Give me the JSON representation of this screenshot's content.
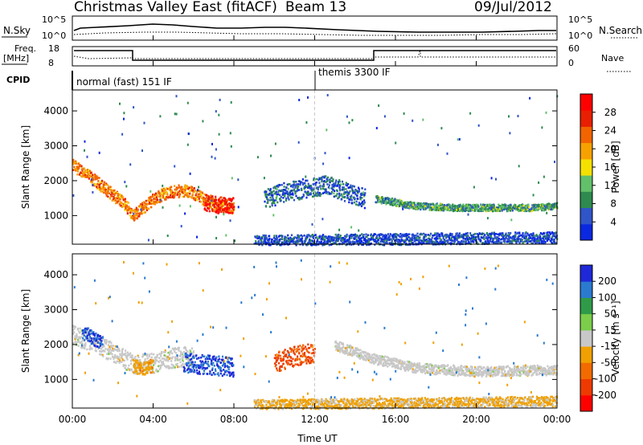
{
  "header": {
    "station": "Christmas Valley East (fitACF)",
    "beam": "Beam 13",
    "date": "09/Jul/2012"
  },
  "top_panels": {
    "nsky_label": "N.Sky",
    "nsky_ticks": [
      "10^5",
      "10^0"
    ],
    "nsearch_label": "N.Search",
    "nsearch_ticks": [
      "10^5",
      "10^0"
    ],
    "freq_label": "Freq.",
    "freq_unit": "[MHz]",
    "freq_ticks": [
      "18",
      "8"
    ],
    "nave_label": "Nave",
    "nave_ticks": [
      "60",
      "0"
    ],
    "cpid_label": "CPID",
    "cpid_segments": [
      {
        "label": "normal (fast) 151 IF",
        "start_hour": 0
      },
      {
        "label": "themis 3300 IF",
        "start_hour": 12
      }
    ]
  },
  "x_axis": {
    "label": "Time UT",
    "ticks": [
      "00:00",
      "04:00",
      "08:00",
      "12:00",
      "16:00",
      "20:00",
      "00:00"
    ]
  },
  "colors": {
    "power": [
      "#0a28e0",
      "#2f55c8",
      "#2e8a4f",
      "#63c06a",
      "#f5e000",
      "#f7a100",
      "#f26400",
      "#e81f00",
      "#ff0000"
    ],
    "velocity": [
      "#1e28d8",
      "#2a7ad0",
      "#2f9b48",
      "#7ccd4a",
      "#c8c8c8",
      "#f0a000",
      "#f26a00",
      "#ee3a00",
      "#ff0000"
    ]
  },
  "chart_data": [
    {
      "type": "heatmap",
      "title": "Power",
      "xlabel": "Time UT",
      "ylabel": "Slant Range [km]",
      "xlim": [
        0,
        24
      ],
      "ylim": [
        180,
        4600
      ],
      "yticks": [
        "1000",
        "2000",
        "3000",
        "4000"
      ],
      "colorbar": {
        "label": "Power [dB]",
        "ticks": [
          "4",
          "8",
          "12",
          "16",
          "20",
          "24",
          "28"
        ],
        "range": [
          0,
          32
        ]
      },
      "features": [
        {
          "t": [
            0.0,
            0.5,
            1.0,
            1.5,
            2.0,
            2.5,
            3.0,
            3.5,
            4.0,
            4.5,
            5.0,
            5.5,
            6.0,
            6.5,
            7.0,
            7.5,
            8.0
          ],
          "range": [
            2450,
            2300,
            2050,
            1850,
            1600,
            1400,
            1050,
            1250,
            1500,
            1650,
            1700,
            1750,
            1650,
            1500,
            1350,
            1300,
            1250
          ],
          "width": 220,
          "value": 22
        },
        {
          "t": [
            6.5,
            7.0,
            7.5,
            8.0
          ],
          "range": [
            1400,
            1350,
            1300,
            1300
          ],
          "width": 300,
          "value": 28
        },
        {
          "t": [
            9.5,
            10.5,
            11.5,
            12.5,
            13.5,
            14.5
          ],
          "range": [
            1500,
            1700,
            1800,
            1900,
            1700,
            1500
          ],
          "width": 350,
          "value": 6
        },
        {
          "t": [
            15.0,
            17.0,
            19.0,
            21.0,
            23.0,
            24.0
          ],
          "range": [
            1500,
            1300,
            1250,
            1250,
            1250,
            1300
          ],
          "width": 120,
          "value": 10
        },
        {
          "t": [
            9.0,
            12.0,
            15.0,
            18.0,
            21.0,
            24.0
          ],
          "range": [
            300,
            320,
            340,
            360,
            380,
            400
          ],
          "width": 200,
          "value": 4
        }
      ]
    },
    {
      "type": "heatmap",
      "title": "Velocity",
      "xlabel": "Time UT",
      "ylabel": "Slant Range [km]",
      "xlim": [
        0,
        24
      ],
      "ylim": [
        180,
        4600
      ],
      "yticks": [
        "1000",
        "2000",
        "3000",
        "4000"
      ],
      "colorbar": {
        "label": "Velocity [m s⁻¹]",
        "ticks": [
          "200",
          "100",
          "50",
          "15",
          "-15",
          "-50",
          "-100",
          "-200"
        ],
        "range": [
          -250,
          250
        ]
      },
      "features": [
        {
          "t": [
            0.0,
            1.0,
            2.0,
            3.0,
            4.0,
            5.0,
            6.0
          ],
          "range": [
            2300,
            2100,
            1800,
            1450,
            1500,
            1650,
            1700
          ],
          "width": 350,
          "value": 0
        },
        {
          "t": [
            0.5,
            1.0,
            1.5
          ],
          "range": [
            2400,
            2200,
            2100
          ],
          "width": 250,
          "value": 200
        },
        {
          "t": [
            3.0,
            3.5,
            4.0
          ],
          "range": [
            1400,
            1350,
            1450
          ],
          "width": 250,
          "value": -60
        },
        {
          "t": [
            5.5,
            6.5,
            7.5,
            8.0
          ],
          "range": [
            1500,
            1450,
            1400,
            1350
          ],
          "width": 350,
          "value": 200
        },
        {
          "t": [
            10.0,
            10.5,
            11.0,
            12.0
          ],
          "range": [
            1500,
            1600,
            1700,
            1800
          ],
          "width": 350,
          "value": -150
        },
        {
          "t": [
            13.0,
            14.0,
            15.0,
            17.0,
            20.0,
            24.0
          ],
          "range": [
            2000,
            1800,
            1600,
            1350,
            1250,
            1300
          ],
          "width": 180,
          "value": 0
        },
        {
          "t": [
            9.0,
            12.0,
            15.0,
            18.0,
            21.0,
            24.0
          ],
          "range": [
            300,
            320,
            340,
            360,
            380,
            400
          ],
          "width": 180,
          "value": -40
        }
      ]
    }
  ]
}
